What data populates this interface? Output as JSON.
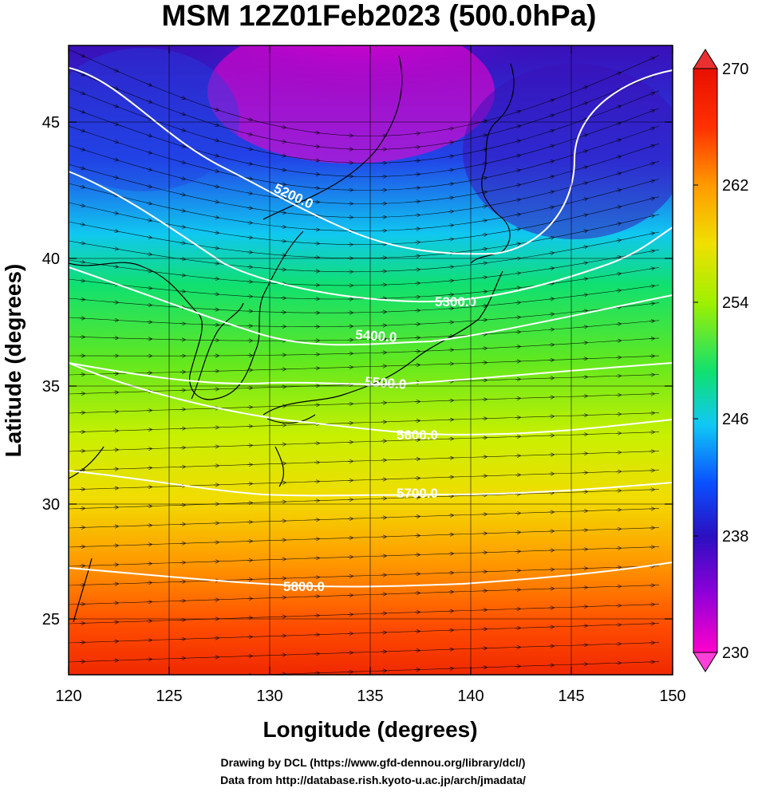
{
  "title": "MSM 12Z01Feb2023 (500.0hPa)",
  "axes": {
    "xlabel": "Longitude (degrees)",
    "ylabel": "Latitude  (degrees)",
    "xlim": [
      120,
      150
    ],
    "ylim": [
      22.4,
      47.6
    ],
    "xticks": [
      "120",
      "125",
      "130",
      "135",
      "140",
      "145",
      "150"
    ],
    "yticks": [
      "25",
      "30",
      "35",
      "40",
      "45"
    ]
  },
  "colorbar": {
    "range": [
      230,
      270
    ],
    "tick_labels": [
      "270",
      "262",
      "254",
      "246",
      "238",
      "230"
    ],
    "colors": [
      "#ff00cc",
      "#9000d8",
      "#2a10c0",
      "#0a50ff",
      "#10c8f5",
      "#10e070",
      "#a0f000",
      "#f0e000",
      "#ff9a00",
      "#ff3000",
      "#e81000"
    ]
  },
  "contours": {
    "labels": [
      "5200.0",
      "5300.0",
      "5400.0",
      "5500.0",
      "5600.0",
      "5700.0",
      "5800.0"
    ]
  },
  "credits": {
    "line1": "Drawing by DCL (https://www.gfd-dennou.org/library/dcl/)",
    "line2": "Data from http://database.rish.kyoto-u.ac.jp/arch/jmadata/"
  }
}
